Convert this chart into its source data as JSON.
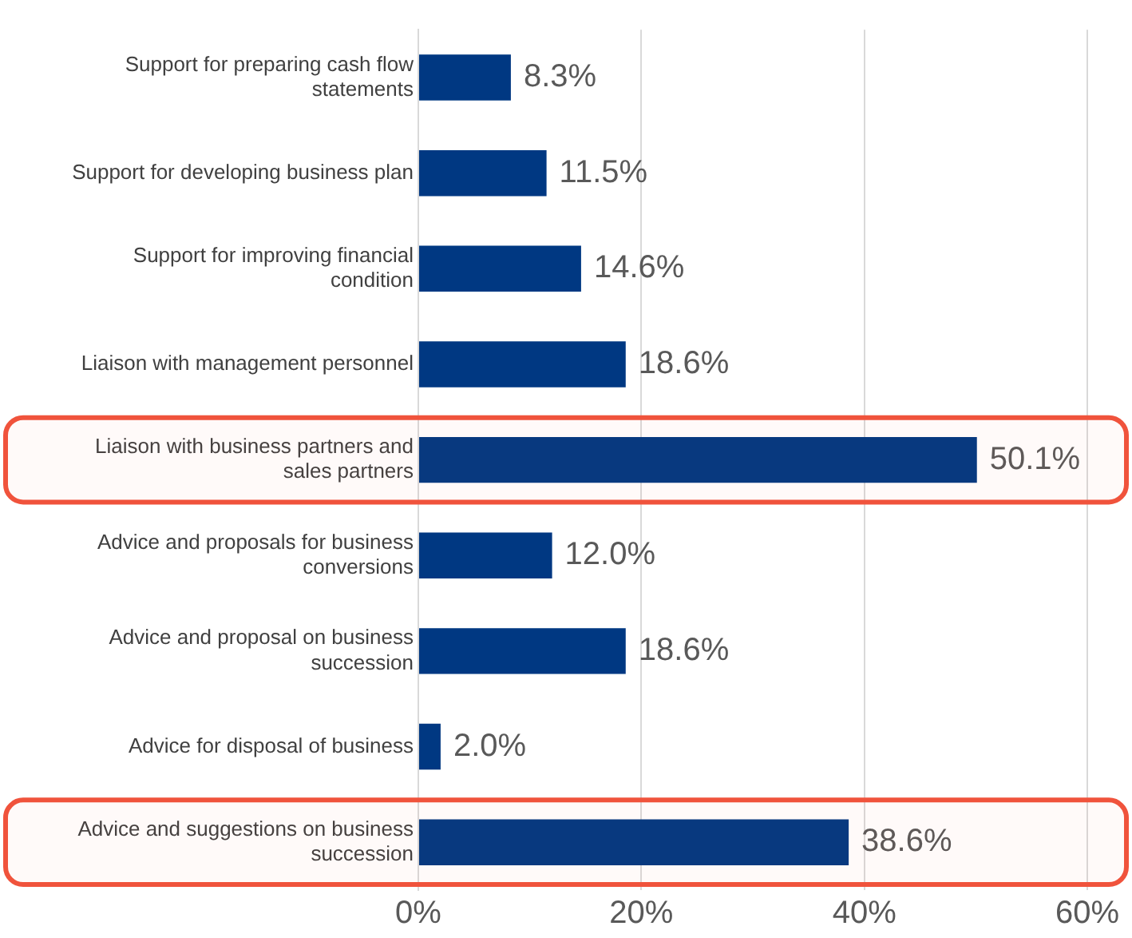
{
  "chart_data": {
    "type": "bar",
    "orientation": "horizontal",
    "categories": [
      "Support for preparing cash flow statements",
      "Support for developing business plan",
      "Support for improving financial condition",
      "Liaison with management personnel",
      "Liaison with business partners and sales partners",
      "Advice and proposals for business conversions",
      "Advice and proposal on business succession",
      "Advice for disposal of business",
      "Advice and suggestions on business succession"
    ],
    "values": [
      8.3,
      11.5,
      14.6,
      18.6,
      50.1,
      12.0,
      18.6,
      2.0,
      38.6
    ],
    "value_labels": [
      "8.3%",
      "11.5%",
      "14.6%",
      "18.6%",
      "50.1%",
      "12.0%",
      "18.6%",
      "2.0%",
      "38.6%"
    ],
    "color": "#003882",
    "xlim": [
      0,
      60
    ],
    "xticks": [
      {
        "value": 0,
        "label": "0%"
      },
      {
        "value": 20,
        "label": "20%"
      },
      {
        "value": 40,
        "label": "40%"
      },
      {
        "value": 60,
        "label": "60%"
      }
    ],
    "grid": "x",
    "legend": false,
    "bands": [
      {
        "axis": "y",
        "from": "Liaison with business partners and sales partners",
        "to": "Liaison with business partners and sales partners",
        "color": "#f0533c"
      },
      {
        "axis": "y",
        "from": "Advice and suggestions on business succession",
        "to": "Advice and suggestions on business succession",
        "color": "#f0533c"
      }
    ]
  }
}
